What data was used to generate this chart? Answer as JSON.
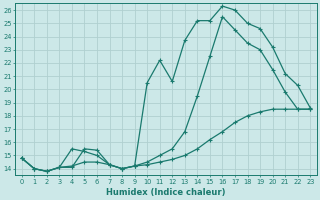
{
  "xlabel": "Humidex (Indice chaleur)",
  "bg_color": "#cce8e8",
  "line_color": "#1a7a6e",
  "grid_color": "#b0d0d0",
  "xlim": [
    -0.5,
    23.5
  ],
  "ylim": [
    13.5,
    26.5
  ],
  "xticks": [
    0,
    1,
    2,
    3,
    4,
    5,
    6,
    7,
    8,
    9,
    10,
    11,
    12,
    13,
    14,
    15,
    16,
    17,
    18,
    19,
    20,
    21,
    22,
    23
  ],
  "yticks": [
    14,
    15,
    16,
    17,
    18,
    19,
    20,
    21,
    22,
    23,
    24,
    25,
    26
  ],
  "line1_x": [
    0,
    1,
    2,
    3,
    4,
    5,
    6,
    7,
    8,
    9,
    10,
    11,
    12,
    13,
    14,
    15,
    16,
    17,
    18,
    19,
    20,
    21,
    22,
    23
  ],
  "line1_y": [
    14.8,
    14.0,
    13.8,
    14.1,
    14.1,
    15.5,
    15.4,
    14.3,
    14.0,
    14.2,
    20.5,
    22.2,
    20.6,
    23.7,
    25.2,
    25.2,
    26.3,
    26.0,
    25.0,
    24.6,
    23.2,
    21.2,
    20.3,
    18.6
  ],
  "line2_x": [
    0,
    1,
    2,
    3,
    4,
    5,
    6,
    7,
    8,
    9,
    10,
    11,
    12,
    13,
    14,
    15,
    16,
    17,
    18,
    19,
    20,
    21,
    22,
    23
  ],
  "line2_y": [
    14.8,
    14.0,
    13.8,
    14.1,
    15.5,
    15.3,
    15.0,
    14.3,
    14.0,
    14.2,
    14.5,
    15.0,
    15.5,
    16.8,
    19.5,
    22.5,
    25.5,
    24.5,
    23.5,
    23.0,
    21.5,
    19.8,
    18.5,
    18.5
  ],
  "line3_x": [
    0,
    1,
    2,
    3,
    4,
    5,
    6,
    7,
    8,
    9,
    10,
    11,
    12,
    13,
    14,
    15,
    16,
    17,
    18,
    19,
    20,
    21,
    22,
    23
  ],
  "line3_y": [
    14.8,
    14.0,
    13.8,
    14.1,
    14.2,
    14.5,
    14.5,
    14.3,
    14.0,
    14.2,
    14.3,
    14.5,
    14.7,
    15.0,
    15.5,
    16.2,
    16.8,
    17.5,
    18.0,
    18.3,
    18.5,
    18.5,
    18.5,
    18.5
  ]
}
